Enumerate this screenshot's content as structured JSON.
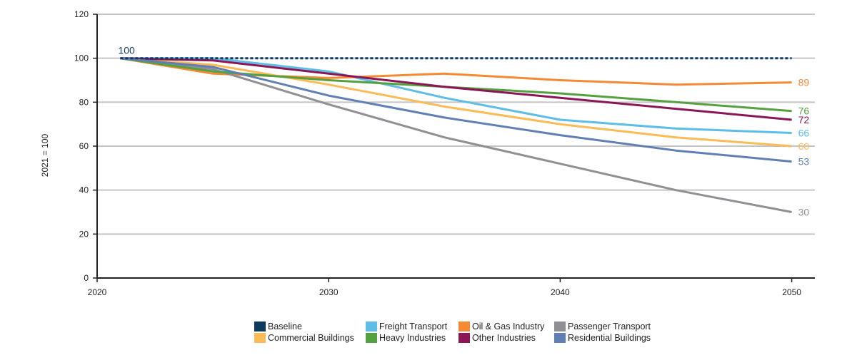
{
  "chart_data": {
    "type": "line",
    "ylabel": "2021 = 100",
    "xlim": [
      2020,
      2051
    ],
    "ylim": [
      0,
      120
    ],
    "yticks": [
      0,
      20,
      40,
      60,
      80,
      100,
      120
    ],
    "xticks": [
      2020,
      2030,
      2040,
      2050
    ],
    "grid": "horizontal",
    "legend_position": "bottom",
    "x": [
      2021,
      2025,
      2030,
      2035,
      2040,
      2045,
      2050
    ],
    "series": [
      {
        "name": "Baseline",
        "color": "#0e3a5e",
        "dashed": true,
        "values": [
          100,
          100,
          100,
          100,
          100,
          100,
          100
        ],
        "end_label": "",
        "start_label": "100"
      },
      {
        "name": "Freight Transport",
        "color": "#5dbde6",
        "dashed": false,
        "values": [
          100,
          100,
          94,
          82,
          72,
          68,
          66
        ],
        "end_label": "66"
      },
      {
        "name": "Oil & Gas Industry",
        "color": "#f58a34",
        "dashed": false,
        "values": [
          100,
          93,
          91,
          93,
          90,
          88,
          89
        ],
        "end_label": "89"
      },
      {
        "name": "Passenger Transport",
        "color": "#8f8f94",
        "dashed": false,
        "values": [
          100,
          95,
          79,
          64,
          52,
          40,
          30
        ],
        "end_label": "30"
      },
      {
        "name": "Commercial Buildings",
        "color": "#fbbb57",
        "dashed": false,
        "values": [
          100,
          97,
          88,
          78,
          70,
          64,
          60
        ],
        "end_label": "60"
      },
      {
        "name": "Heavy Industries",
        "color": "#55a03f",
        "dashed": false,
        "values": [
          100,
          94,
          90,
          87,
          84,
          80,
          76
        ],
        "end_label": "76"
      },
      {
        "name": "Other Industries",
        "color": "#8b1656",
        "dashed": false,
        "values": [
          100,
          99,
          93,
          87,
          82,
          77,
          72
        ],
        "end_label": "72"
      },
      {
        "name": "Residential Buildings",
        "color": "#5f7fb5",
        "dashed": false,
        "values": [
          100,
          96,
          83,
          73,
          65,
          58,
          53
        ],
        "end_label": "53"
      }
    ]
  }
}
